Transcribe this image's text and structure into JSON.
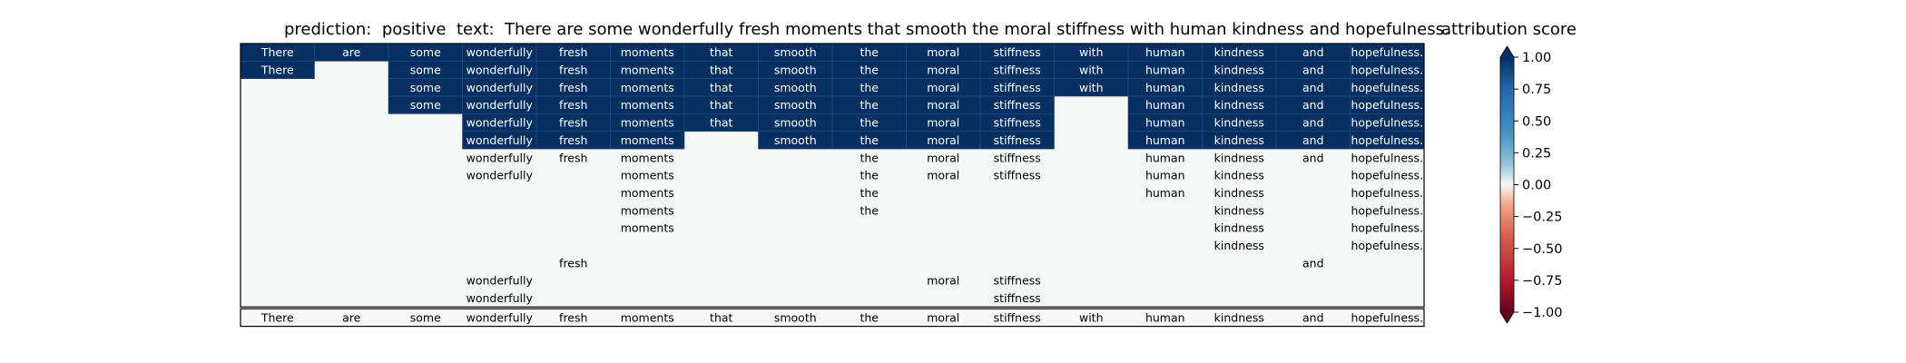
{
  "header": {
    "prediction_label": "prediction:  positive",
    "text_label": "text:  There are some wonderfully fresh moments that smooth the moral stiffness with human kindness and hopefulness.",
    "colorbar_title": "attribution score"
  },
  "chart_data": {
    "type": "heatmap",
    "tokens": [
      "There",
      "are",
      "some",
      "wonderfully",
      "fresh",
      "moments",
      "that",
      "smooth",
      "the",
      "moral",
      "stiffness",
      "with",
      "human",
      "kindness",
      "and",
      "hopefulness."
    ],
    "rows": [
      [
        "There",
        "are",
        "some",
        "wonderfully",
        "fresh",
        "moments",
        "that",
        "smooth",
        "the",
        "moral",
        "stiffness",
        "with",
        "human",
        "kindness",
        "and",
        "hopefulness."
      ],
      [
        "There",
        "",
        "some",
        "wonderfully",
        "fresh",
        "moments",
        "that",
        "smooth",
        "the",
        "moral",
        "stiffness",
        "with",
        "human",
        "kindness",
        "and",
        "hopefulness."
      ],
      [
        "",
        "",
        "some",
        "wonderfully",
        "fresh",
        "moments",
        "that",
        "smooth",
        "the",
        "moral",
        "stiffness",
        "with",
        "human",
        "kindness",
        "and",
        "hopefulness."
      ],
      [
        "",
        "",
        "some",
        "wonderfully",
        "fresh",
        "moments",
        "that",
        "smooth",
        "the",
        "moral",
        "stiffness",
        "",
        "human",
        "kindness",
        "and",
        "hopefulness."
      ],
      [
        "",
        "",
        "",
        "wonderfully",
        "fresh",
        "moments",
        "that",
        "smooth",
        "the",
        "moral",
        "stiffness",
        "",
        "human",
        "kindness",
        "and",
        "hopefulness."
      ],
      [
        "",
        "",
        "",
        "wonderfully",
        "fresh",
        "moments",
        "",
        "smooth",
        "the",
        "moral",
        "stiffness",
        "",
        "human",
        "kindness",
        "and",
        "hopefulness."
      ],
      [
        "",
        "",
        "",
        "wonderfully",
        "fresh",
        "moments",
        "",
        "",
        "the",
        "moral",
        "stiffness",
        "",
        "human",
        "kindness",
        "and",
        "hopefulness."
      ],
      [
        "",
        "",
        "",
        "wonderfully",
        "",
        "moments",
        "",
        "",
        "the",
        "moral",
        "stiffness",
        "",
        "human",
        "kindness",
        "",
        "hopefulness."
      ],
      [
        "",
        "",
        "",
        "",
        "",
        "moments",
        "",
        "",
        "the",
        "",
        "",
        "",
        "human",
        "kindness",
        "",
        "hopefulness."
      ],
      [
        "",
        "",
        "",
        "",
        "",
        "moments",
        "",
        "",
        "the",
        "",
        "",
        "",
        "",
        "kindness",
        "",
        "hopefulness."
      ],
      [
        "",
        "",
        "",
        "",
        "",
        "moments",
        "",
        "",
        "",
        "",
        "",
        "",
        "",
        "kindness",
        "",
        "hopefulness."
      ],
      [
        "",
        "",
        "",
        "",
        "",
        "",
        "",
        "",
        "",
        "",
        "",
        "",
        "",
        "kindness",
        "",
        "hopefulness."
      ],
      [
        "",
        "",
        "",
        "",
        "fresh",
        "",
        "",
        "",
        "",
        "",
        "",
        "",
        "",
        "",
        "and",
        ""
      ],
      [
        "",
        "",
        "",
        "wonderfully",
        "",
        "",
        "",
        "",
        "",
        "moral",
        "stiffness",
        "",
        "",
        "",
        "",
        ""
      ],
      [
        "",
        "",
        "",
        "wonderfully",
        "",
        "",
        "",
        "",
        "",
        "",
        "stiffness",
        "",
        "",
        "",
        "",
        ""
      ]
    ],
    "values": [
      [
        1,
        1,
        1,
        1,
        1,
        1,
        1,
        1,
        1,
        1,
        1,
        1,
        1,
        1,
        1,
        1
      ],
      [
        1,
        0,
        1,
        1,
        1,
        1,
        1,
        1,
        1,
        1,
        1,
        1,
        1,
        1,
        1,
        1
      ],
      [
        0,
        0,
        1,
        1,
        1,
        1,
        1,
        1,
        1,
        1,
        1,
        1,
        1,
        1,
        1,
        1
      ],
      [
        0,
        0,
        1,
        1,
        1,
        1,
        1,
        1,
        1,
        1,
        1,
        0,
        1,
        1,
        1,
        1
      ],
      [
        0,
        0,
        0,
        1,
        1,
        1,
        1,
        1,
        1,
        1,
        1,
        0,
        1,
        1,
        1,
        1
      ],
      [
        0,
        0,
        0,
        1,
        1,
        1,
        0,
        1,
        1,
        1,
        1,
        0,
        1,
        1,
        1,
        1
      ],
      [
        0,
        0,
        0,
        0,
        0,
        0,
        0,
        0,
        0,
        0,
        0,
        0,
        0,
        0,
        0,
        0
      ],
      [
        0,
        0,
        0,
        0,
        0,
        0,
        0,
        0,
        0,
        0,
        0,
        0,
        0,
        0,
        0,
        0
      ],
      [
        0,
        0,
        0,
        0,
        0,
        0,
        0,
        0,
        0,
        0,
        0,
        0,
        0,
        0,
        0,
        0
      ],
      [
        0,
        0,
        0,
        0,
        0,
        0,
        0,
        0,
        0,
        0,
        0,
        0,
        0,
        0,
        0,
        0
      ],
      [
        0,
        0,
        0,
        0,
        0,
        0,
        0,
        0,
        0,
        0,
        0,
        0,
        0,
        0,
        0,
        0
      ],
      [
        0,
        0,
        0,
        0,
        0,
        0,
        0,
        0,
        0,
        0,
        0,
        0,
        0,
        0,
        0,
        0
      ],
      [
        0,
        0,
        0,
        0,
        0,
        0,
        0,
        0,
        0,
        0,
        0,
        0,
        0,
        0,
        0,
        0
      ],
      [
        0,
        0,
        0,
        0,
        0,
        0,
        0,
        0,
        0,
        0,
        0,
        0,
        0,
        0,
        0,
        0
      ],
      [
        0,
        0,
        0,
        0,
        0,
        0,
        0,
        0,
        0,
        0,
        0,
        0,
        0,
        0,
        0,
        0
      ]
    ],
    "footer_row": [
      "There",
      "are",
      "some",
      "wonderfully",
      "fresh",
      "moments",
      "that",
      "smooth",
      "the",
      "moral",
      "stiffness",
      "with",
      "human",
      "kindness",
      "and",
      "hopefulness."
    ],
    "colorbar": {
      "title": "attribution score",
      "vmin": -1.0,
      "vmax": 1.0,
      "ticks": [
        1.0,
        0.75,
        0.5,
        0.25,
        0.0,
        -0.25,
        -0.5,
        -0.75,
        -1.0
      ],
      "tick_labels": [
        "1.00",
        "0.75",
        "0.50",
        "0.25",
        "0.00",
        "−0.25",
        "−0.50",
        "−0.75",
        "−1.00"
      ],
      "colormap": "RdBu",
      "extend": "both",
      "colors": {
        "max": "#053061",
        "high": "#2166ac",
        "midhigh": "#92c5de",
        "mid": "#f7f7f7",
        "midlow": "#f4a582",
        "low": "#b2182b",
        "min": "#67001f"
      }
    }
  }
}
